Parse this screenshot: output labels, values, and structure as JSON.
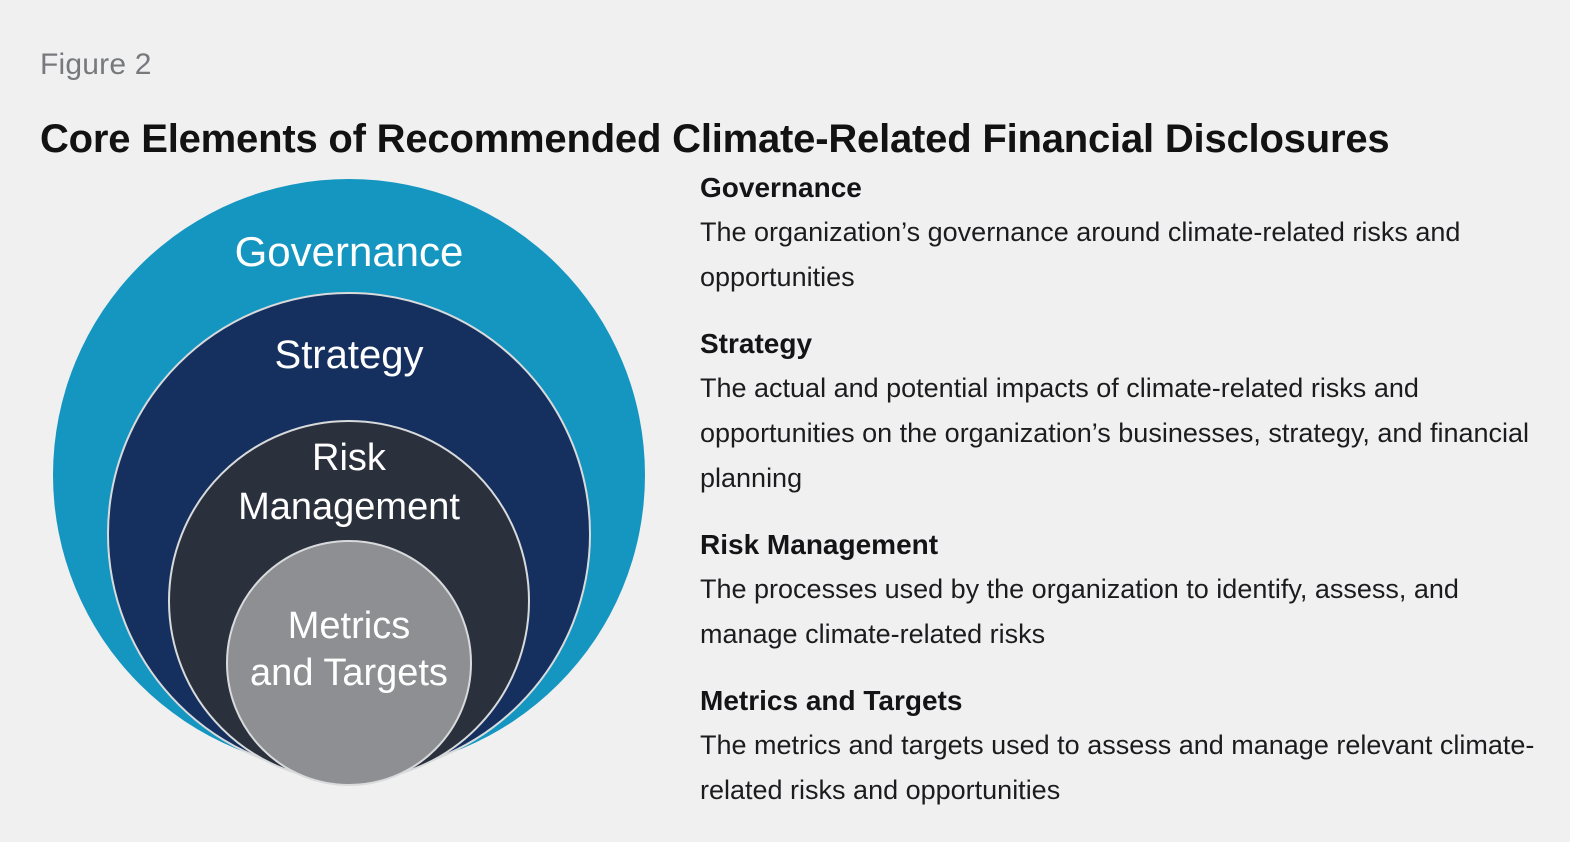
{
  "figure_label": "Figure 2",
  "title": "Core Elements of Recommended Climate-Related Financial Disclosures",
  "colors": {
    "background": "#f0f0f1",
    "title_text": "#121212",
    "figure_label_text": "#77797c",
    "governance_circle": "#1496c1",
    "strategy_circle": "#15305e",
    "risk_circle": "#2b313c",
    "metrics_circle": "#8d8f92",
    "circle_border": "#d8dadc",
    "circle_label_text": "#ffffff"
  },
  "diagram": {
    "rings": [
      {
        "id": "governance",
        "line1": "Governance",
        "line2": "",
        "color": "#1496c1"
      },
      {
        "id": "strategy",
        "line1": "Strategy",
        "line2": "",
        "color": "#15305e"
      },
      {
        "id": "risk-management",
        "line1": "Risk",
        "line2": "Management",
        "color": "#2b313c"
      },
      {
        "id": "metrics-and-targets",
        "line1": "Metrics",
        "line2": "and Targets",
        "color": "#8d8f92"
      }
    ]
  },
  "sections": [
    {
      "heading": "Governance",
      "body": "The organization’s governance around climate-related risks and opportunities"
    },
    {
      "heading": "Strategy",
      "body": "The actual and potential impacts of climate-related risks and opportunities on the organization’s businesses, strategy, and financial planning"
    },
    {
      "heading": "Risk Management",
      "body": "The processes used by the organization to identify, assess, and manage climate-related risks"
    },
    {
      "heading": "Metrics and Targets",
      "body": "The metrics and targets used to assess and manage relevant climate-related risks and opportunities"
    }
  ]
}
